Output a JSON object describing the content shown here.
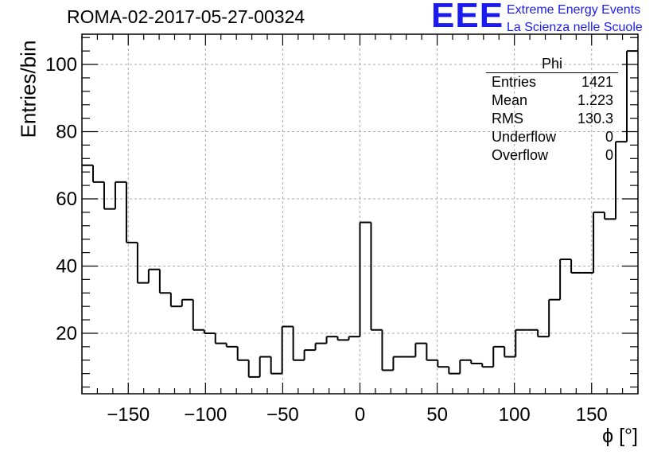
{
  "header": {
    "title": "ROMA-02-2017-05-27-00324",
    "logo_text": "EEE",
    "logo_line1": "Extreme Energy Events",
    "logo_line2": "La Scienza nelle Scuole"
  },
  "stats": {
    "title": "Phi",
    "rows": [
      {
        "label": "Entries",
        "value": "1421"
      },
      {
        "label": "Mean",
        "value": "1.223"
      },
      {
        "label": "RMS",
        "value": "130.3"
      },
      {
        "label": "Underflow",
        "value": "0"
      },
      {
        "label": "Overflow",
        "value": "0"
      }
    ]
  },
  "colors": {
    "accent": "#1b1bf0",
    "line": "#000000",
    "grid": "#aaaaaa"
  },
  "chart_data": {
    "type": "bar",
    "histogram": true,
    "xlabel": "ϕ [°]",
    "ylabel": "Entries/bin",
    "xlim": [
      -180,
      180
    ],
    "ylim": [
      2,
      109
    ],
    "bin_width": 7.2,
    "x_ticks": [
      -150,
      -100,
      -50,
      0,
      50,
      100,
      150
    ],
    "y_ticks": [
      20,
      40,
      60,
      80,
      100
    ],
    "grid": true,
    "values": [
      70,
      65,
      57,
      65,
      47,
      35,
      39,
      32,
      28,
      30,
      21,
      20,
      17,
      16,
      12,
      7,
      13,
      8,
      22,
      12,
      15,
      17,
      19,
      18,
      19,
      53,
      21,
      9,
      13,
      13,
      17,
      12,
      10,
      8,
      12,
      11,
      10,
      16,
      13,
      21,
      21,
      19,
      30,
      42,
      38,
      38,
      56,
      54,
      77,
      104
    ]
  }
}
